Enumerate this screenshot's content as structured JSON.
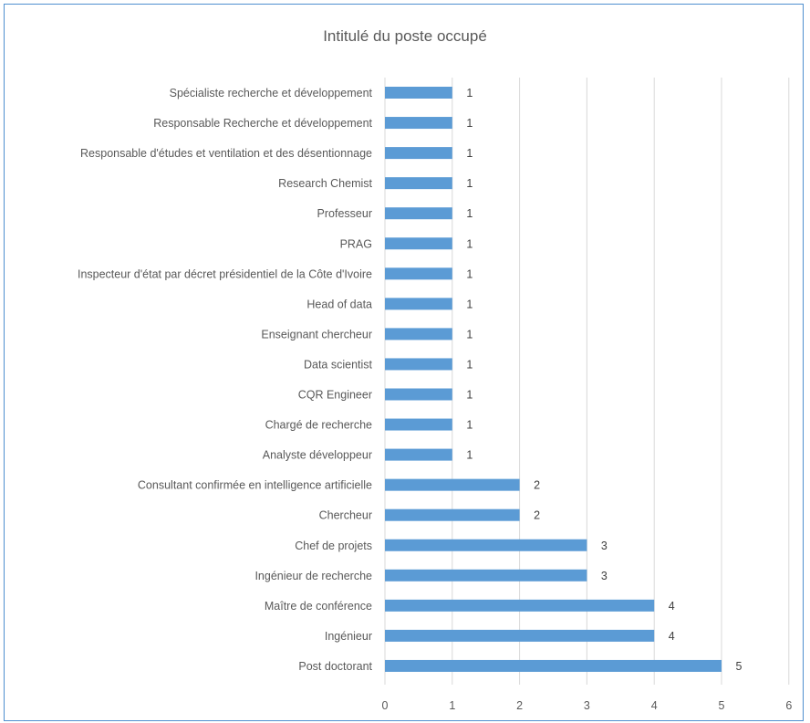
{
  "chart_data": {
    "type": "bar",
    "orientation": "horizontal",
    "title": "Intitulé du poste occupé",
    "categories": [
      "Spécialiste recherche et développement",
      "Responsable Recherche et développement",
      "Responsable d'études et ventilation et des désentionnage",
      "Research Chemist",
      "Professeur",
      "PRAG",
      "Inspecteur d'état par décret présidentiel de la Côte d'Ivoire",
      "Head of data",
      "Enseignant chercheur",
      "Data scientist",
      "CQR Engineer",
      "Chargé de recherche",
      "Analyste développeur",
      "Consultant confirmée en intelligence artificielle",
      "Chercheur",
      "Chef de projets",
      "Ingénieur de recherche",
      "Maître de conférence",
      "Ingénieur",
      "Post doctorant"
    ],
    "values": [
      1,
      1,
      1,
      1,
      1,
      1,
      1,
      1,
      1,
      1,
      1,
      1,
      1,
      2,
      2,
      3,
      3,
      4,
      4,
      5
    ],
    "xlim": [
      0,
      6
    ],
    "xticks": [
      "0",
      "1",
      "2",
      "3",
      "4",
      "5",
      "6"
    ],
    "grid": true,
    "data_labels": true,
    "bar_color": "#5b9bd5",
    "grid_color": "#d9d9d9",
    "frame_color": "#4f8fcf"
  }
}
